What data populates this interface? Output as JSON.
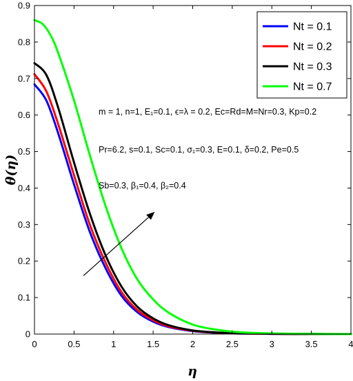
{
  "chart_data": {
    "type": "line",
    "xlabel": "η",
    "ylabel": "θ(η)",
    "xlim": [
      0,
      4
    ],
    "ylim": [
      0,
      0.9
    ],
    "xticks": [
      "0",
      "0.5",
      "1",
      "1.5",
      "2",
      "2.5",
      "3",
      "3.5",
      "4"
    ],
    "yticks": [
      "0",
      "0.1",
      "0.2",
      "0.3",
      "0.4",
      "0.5",
      "0.6",
      "0.7",
      "0.8",
      "0.9"
    ],
    "grid": false,
    "legend_position": "top-right",
    "series": [
      {
        "name": "Nt = 0.1",
        "color": "#0000ff",
        "x": [
          0,
          0.15,
          0.3,
          0.5,
          0.7,
          0.9,
          1.1,
          1.3,
          1.5,
          1.7,
          2.0,
          2.3,
          2.6,
          3.0,
          3.5,
          4.0
        ],
        "y": [
          0.684,
          0.64,
          0.55,
          0.41,
          0.28,
          0.18,
          0.105,
          0.06,
          0.034,
          0.019,
          0.008,
          0.0035,
          0.0015,
          0.0006,
          0.0002,
          0.0
        ]
      },
      {
        "name": "Nt = 0.2",
        "color": "#ff0000",
        "x": [
          0,
          0.15,
          0.3,
          0.5,
          0.7,
          0.9,
          1.1,
          1.3,
          1.5,
          1.7,
          2.0,
          2.3,
          2.6,
          3.0,
          3.5,
          4.0
        ],
        "y": [
          0.712,
          0.665,
          0.575,
          0.435,
          0.3,
          0.195,
          0.115,
          0.066,
          0.038,
          0.021,
          0.009,
          0.004,
          0.0017,
          0.0007,
          0.0002,
          0.0
        ]
      },
      {
        "name": "Nt = 0.3",
        "color": "#000000",
        "x": [
          0,
          0.15,
          0.3,
          0.5,
          0.7,
          0.9,
          1.1,
          1.3,
          1.5,
          1.7,
          2.0,
          2.3,
          2.6,
          3.0,
          3.5,
          4.0
        ],
        "y": [
          0.742,
          0.71,
          0.62,
          0.47,
          0.33,
          0.215,
          0.13,
          0.075,
          0.043,
          0.024,
          0.01,
          0.0045,
          0.002,
          0.0008,
          0.0002,
          0.0
        ]
      },
      {
        "name": "Nt = 0.7",
        "color": "#00ff00",
        "x": [
          0,
          0.1,
          0.2,
          0.3,
          0.5,
          0.7,
          0.9,
          1.1,
          1.3,
          1.5,
          1.7,
          2.0,
          2.3,
          2.6,
          3.0,
          3.5,
          4.0
        ],
        "y": [
          0.86,
          0.85,
          0.82,
          0.77,
          0.64,
          0.49,
          0.35,
          0.235,
          0.15,
          0.095,
          0.058,
          0.026,
          0.012,
          0.005,
          0.0018,
          0.0005,
          0.0
        ]
      }
    ],
    "annotations": [
      "m = 1, n=1, E₁=0.1, ϵ=λ = 0.2, Ec=Rd=M=Nr=0.3, Kp=0.2",
      "Pr=6.2, s=0.1, Sc=0.1, σ₁=0.3, E=0.1, δ=0.2, Pe=0.5",
      "Sb=0.3, β₁=0.4, β₂=0.4"
    ],
    "arrow": {
      "from": [
        0.62,
        0.16
      ],
      "to": [
        1.52,
        0.335
      ]
    }
  }
}
